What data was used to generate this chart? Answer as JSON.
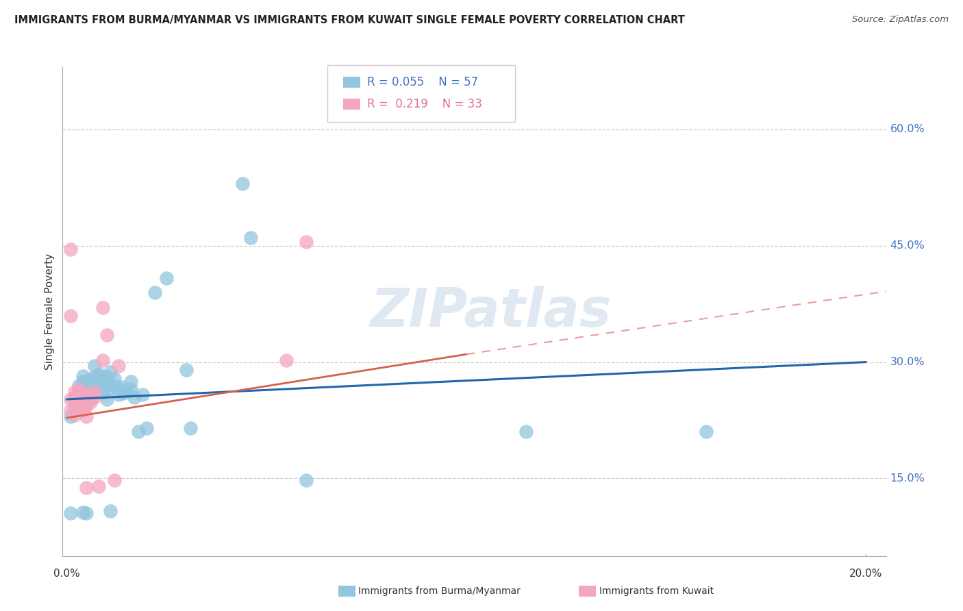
{
  "title": "IMMIGRANTS FROM BURMA/MYANMAR VS IMMIGRANTS FROM KUWAIT SINGLE FEMALE POVERTY CORRELATION CHART",
  "source": "Source: ZipAtlas.com",
  "ylabel": "Single Female Poverty",
  "ytick_labels": [
    "60.0%",
    "45.0%",
    "30.0%",
    "15.0%"
  ],
  "ytick_values": [
    0.6,
    0.45,
    0.3,
    0.15
  ],
  "xlim": [
    -0.001,
    0.205
  ],
  "ylim": [
    0.05,
    0.68
  ],
  "legend1_r": "0.055",
  "legend1_n": "57",
  "legend2_r": "0.219",
  "legend2_n": "33",
  "blue_color": "#92c5de",
  "pink_color": "#f4a6be",
  "blue_line_color": "#2166ac",
  "pink_line_color": "#d6604d",
  "watermark": "ZIPatlas",
  "blue_x": [
    0.001,
    0.001,
    0.002,
    0.002,
    0.003,
    0.003,
    0.003,
    0.003,
    0.004,
    0.004,
    0.004,
    0.004,
    0.005,
    0.005,
    0.005,
    0.005,
    0.005,
    0.006,
    0.006,
    0.006,
    0.006,
    0.007,
    0.007,
    0.007,
    0.008,
    0.008,
    0.009,
    0.009,
    0.009,
    0.01,
    0.01,
    0.01,
    0.01,
    0.011,
    0.011,
    0.012,
    0.012,
    0.013,
    0.013,
    0.014,
    0.014,
    0.015,
    0.016,
    0.016,
    0.017,
    0.018,
    0.019,
    0.02,
    0.022,
    0.025,
    0.03,
    0.031,
    0.044,
    0.046,
    0.06,
    0.115,
    0.16
  ],
  "blue_y": [
    0.23,
    0.105,
    0.255,
    0.248,
    0.252,
    0.261,
    0.27,
    0.26,
    0.275,
    0.252,
    0.282,
    0.106,
    0.27,
    0.275,
    0.256,
    0.262,
    0.105,
    0.278,
    0.268,
    0.261,
    0.252,
    0.295,
    0.28,
    0.27,
    0.285,
    0.282,
    0.278,
    0.27,
    0.26,
    0.272,
    0.281,
    0.262,
    0.252,
    0.287,
    0.108,
    0.278,
    0.27,
    0.265,
    0.258,
    0.268,
    0.26,
    0.262,
    0.275,
    0.265,
    0.255,
    0.21,
    0.258,
    0.215,
    0.39,
    0.408,
    0.29,
    0.215,
    0.53,
    0.46,
    0.148,
    0.21,
    0.21
  ],
  "pink_x": [
    0.001,
    0.001,
    0.001,
    0.001,
    0.002,
    0.002,
    0.002,
    0.002,
    0.003,
    0.003,
    0.003,
    0.003,
    0.003,
    0.004,
    0.004,
    0.004,
    0.004,
    0.005,
    0.005,
    0.005,
    0.005,
    0.006,
    0.006,
    0.007,
    0.007,
    0.008,
    0.009,
    0.009,
    0.01,
    0.012,
    0.013,
    0.055,
    0.06
  ],
  "pink_y": [
    0.252,
    0.238,
    0.36,
    0.445,
    0.24,
    0.255,
    0.262,
    0.232,
    0.248,
    0.258,
    0.265,
    0.245,
    0.24,
    0.252,
    0.26,
    0.248,
    0.238,
    0.255,
    0.243,
    0.23,
    0.138,
    0.258,
    0.248,
    0.262,
    0.255,
    0.14,
    0.302,
    0.37,
    0.335,
    0.148,
    0.295,
    0.302,
    0.455
  ]
}
